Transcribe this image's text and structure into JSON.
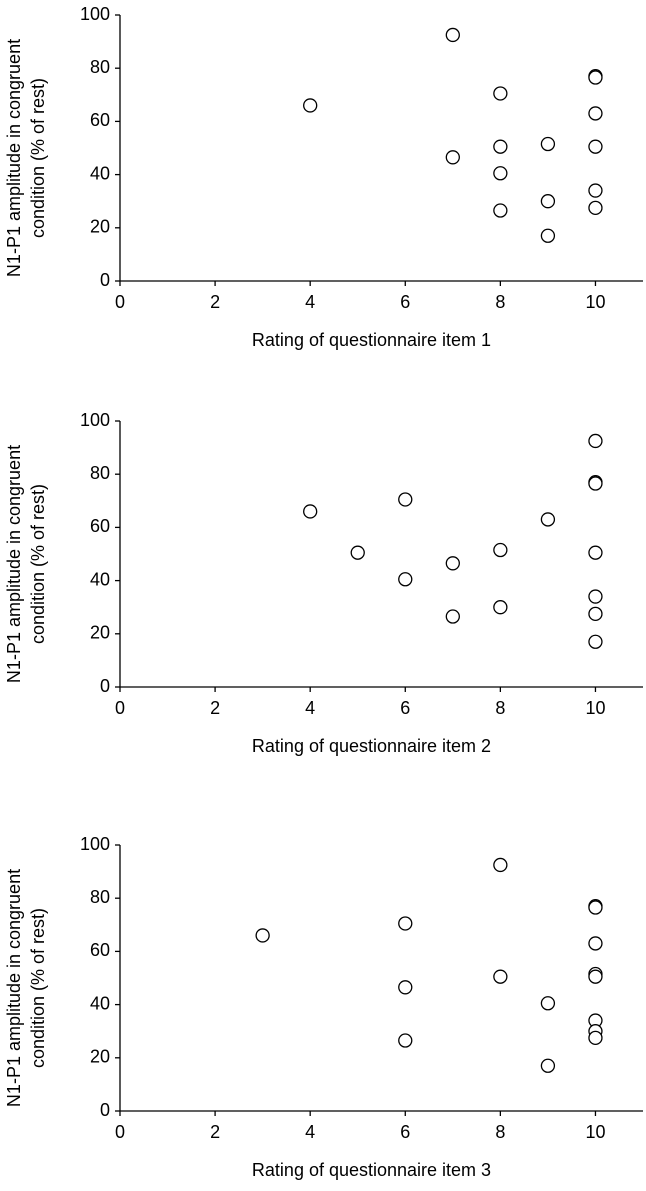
{
  "chart_data": [
    {
      "type": "scatter",
      "xlabel": "Rating of questionnaire item 1",
      "ylabel": [
        "N1-P1 amplitude in congruent",
        "condition (% of rest)"
      ],
      "color": "#000000",
      "x": [
        4,
        7,
        7,
        8,
        8,
        8,
        8,
        9,
        9,
        9,
        10,
        10,
        10,
        10,
        10,
        10
      ],
      "values": [
        66,
        92.5,
        46.5,
        70.5,
        50.5,
        40.5,
        26.5,
        51.5,
        30,
        17,
        77,
        76.5,
        63,
        50.5,
        34,
        27.5
      ],
      "xlim": [
        0,
        11
      ],
      "ylim": [
        0,
        100
      ],
      "xticks": [
        0,
        2,
        4,
        6,
        8,
        10
      ],
      "yticks": [
        0,
        20,
        40,
        60,
        80,
        100
      ]
    },
    {
      "type": "scatter",
      "xlabel": "Rating of questionnaire item 2",
      "ylabel": [
        "N1-P1 amplitude in congruent",
        "condition (% of rest)"
      ],
      "color": "#000000",
      "x": [
        4,
        5,
        6,
        6,
        7,
        7,
        8,
        8,
        9,
        10,
        10,
        10,
        10,
        10,
        10,
        10
      ],
      "values": [
        66,
        50.5,
        70.5,
        40.5,
        46.5,
        26.5,
        51.5,
        30,
        63,
        92.5,
        77,
        76.5,
        50.5,
        34,
        27.5,
        17
      ],
      "xlim": [
        0,
        11
      ],
      "ylim": [
        0,
        100
      ],
      "xticks": [
        0,
        2,
        4,
        6,
        8,
        10
      ],
      "yticks": [
        0,
        20,
        40,
        60,
        80,
        100
      ]
    },
    {
      "type": "scatter",
      "xlabel": "Rating of questionnaire item 3",
      "ylabel": [
        "N1-P1 amplitude in congruent",
        "condition (% of rest)"
      ],
      "color": "#000000",
      "x": [
        3,
        6,
        6,
        6,
        8,
        8,
        9,
        9,
        10,
        10,
        10,
        10,
        10,
        10,
        10,
        10
      ],
      "values": [
        66,
        70.5,
        46.5,
        26.5,
        92.5,
        50.5,
        40.5,
        17,
        77,
        76.5,
        63,
        51.5,
        50.5,
        34,
        30,
        27.5
      ],
      "xlim": [
        0,
        11
      ],
      "ylim": [
        0,
        100
      ],
      "xticks": [
        0,
        2,
        4,
        6,
        8,
        10
      ],
      "yticks": [
        0,
        20,
        40,
        60,
        80,
        100
      ]
    }
  ]
}
